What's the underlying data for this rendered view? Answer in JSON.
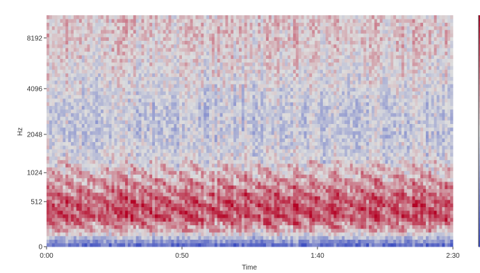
{
  "chart_data": {
    "type": "heatmap",
    "subtype": "spectrogram",
    "title": "",
    "xlabel": "Time",
    "ylabel": "Hz",
    "x_axis": {
      "unit": "seconds",
      "range": [
        0,
        150
      ],
      "ticks": [
        {
          "value": 0,
          "label": "0:00"
        },
        {
          "value": 50,
          "label": "0:50"
        },
        {
          "value": 100,
          "label": "1:40"
        },
        {
          "value": 150,
          "label": "2:30"
        }
      ]
    },
    "y_axis": {
      "scale": "mel",
      "unit": "Hz",
      "range": [
        0,
        11025
      ],
      "ticks": [
        {
          "value": 0,
          "label": "0"
        },
        {
          "value": 512,
          "label": "512"
        },
        {
          "value": 1024,
          "label": "1024"
        },
        {
          "value": 2048,
          "label": "2048"
        },
        {
          "value": 4096,
          "label": "4096"
        },
        {
          "value": 8192,
          "label": "8192"
        }
      ]
    },
    "colormap": {
      "name": "coolwarm",
      "low": "#3b4cc0",
      "mid": "#dddddd",
      "high": "#b40426"
    },
    "colorbar": true,
    "grid": false,
    "intensity_profile": {
      "frequency_hz": [
        0,
        60,
        150,
        300,
        512,
        700,
        1024,
        1400,
        2048,
        3000,
        4096,
        6000,
        8192,
        11025
      ],
      "relative_level": [
        0.08,
        0.3,
        0.6,
        0.82,
        0.8,
        0.7,
        0.6,
        0.46,
        0.42,
        0.42,
        0.47,
        0.52,
        0.55,
        0.55
      ]
    }
  }
}
